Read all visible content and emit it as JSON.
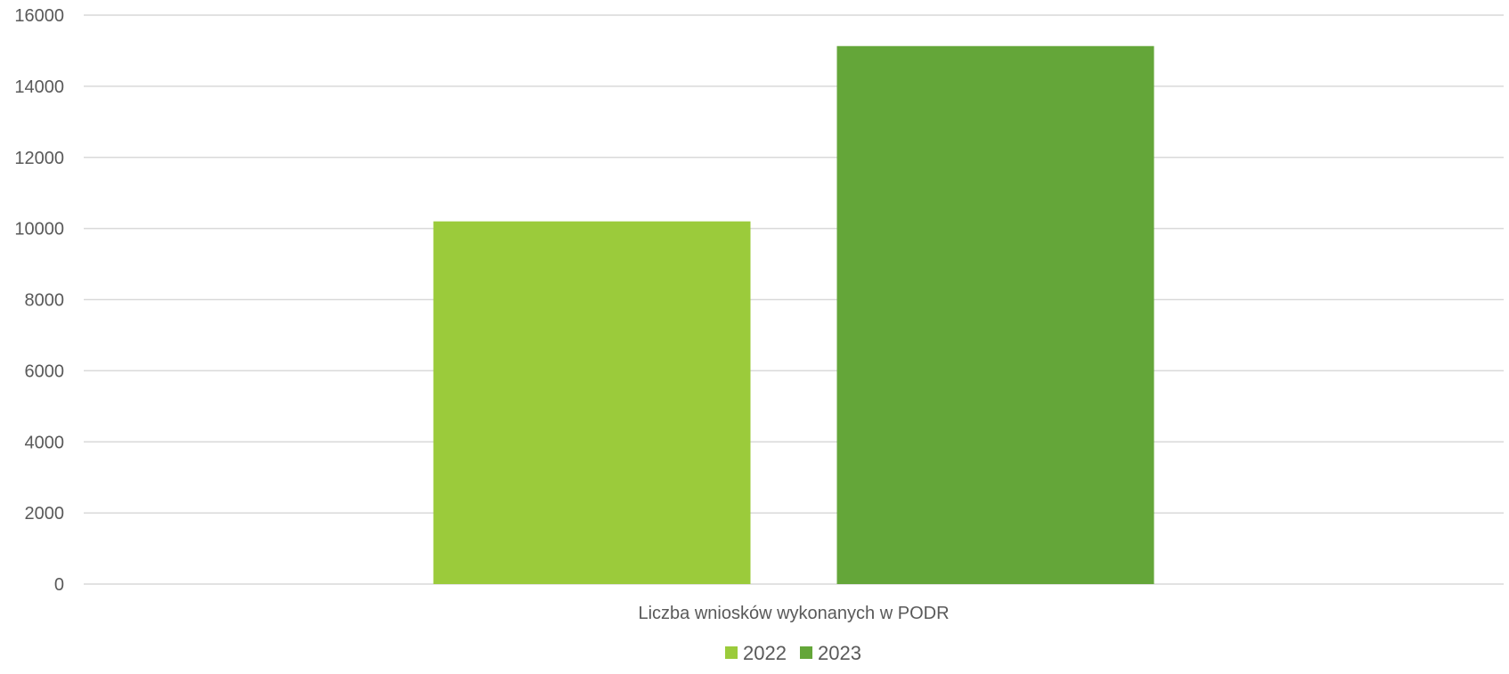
{
  "chart_data": {
    "type": "bar",
    "title": "",
    "xlabel": "",
    "ylabel": "",
    "categories": [
      "Liczba wniosków wykonanych w PODR"
    ],
    "series": [
      {
        "name": "2022",
        "values": [
          10200
        ],
        "color": "#9bcb3b"
      },
      {
        "name": "2023",
        "values": [
          15130
        ],
        "color": "#64a639"
      }
    ],
    "ylim": [
      0,
      16000
    ],
    "y_ticks": [
      0,
      2000,
      4000,
      6000,
      8000,
      10000,
      12000,
      14000,
      16000
    ],
    "grid": true,
    "legend_position": "bottom"
  }
}
